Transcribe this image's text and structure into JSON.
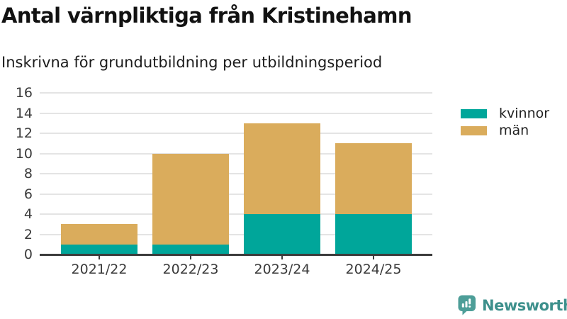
{
  "header": {
    "title": "Antal värnpliktiga från Kristinehamn",
    "subtitle": "Inskrivna för grundutbildning per utbildningsperiod"
  },
  "chart_data": {
    "type": "bar",
    "stacked": true,
    "title": "Antal värnpliktiga från Kristinehamn",
    "subtitle": "Inskrivna för grundutbildning per utbildningsperiod",
    "categories": [
      "2021/22",
      "2022/23",
      "2023/24",
      "2024/25"
    ],
    "series": [
      {
        "name": "kvinnor",
        "color": "#00A69A",
        "values": [
          1,
          1,
          4,
          4
        ]
      },
      {
        "name": "män",
        "color": "#DAAC5C",
        "values": [
          2,
          9,
          9,
          7
        ]
      }
    ],
    "totals": [
      3,
      10,
      13,
      11
    ],
    "xlabel": "",
    "ylabel": "",
    "ylim": [
      0,
      16
    ],
    "yticks": [
      0,
      2,
      4,
      6,
      8,
      10,
      12,
      14,
      16
    ],
    "grid": "horizontal",
    "legend_position": "right"
  },
  "colors": {
    "axis": "#3c3c3c",
    "gridline": "#e4e4e4",
    "tick_label": "#3a3a3a"
  },
  "branding": {
    "name": "Newsworthy",
    "text_color": "#3d908c",
    "icon_color": "#4d9e98"
  }
}
